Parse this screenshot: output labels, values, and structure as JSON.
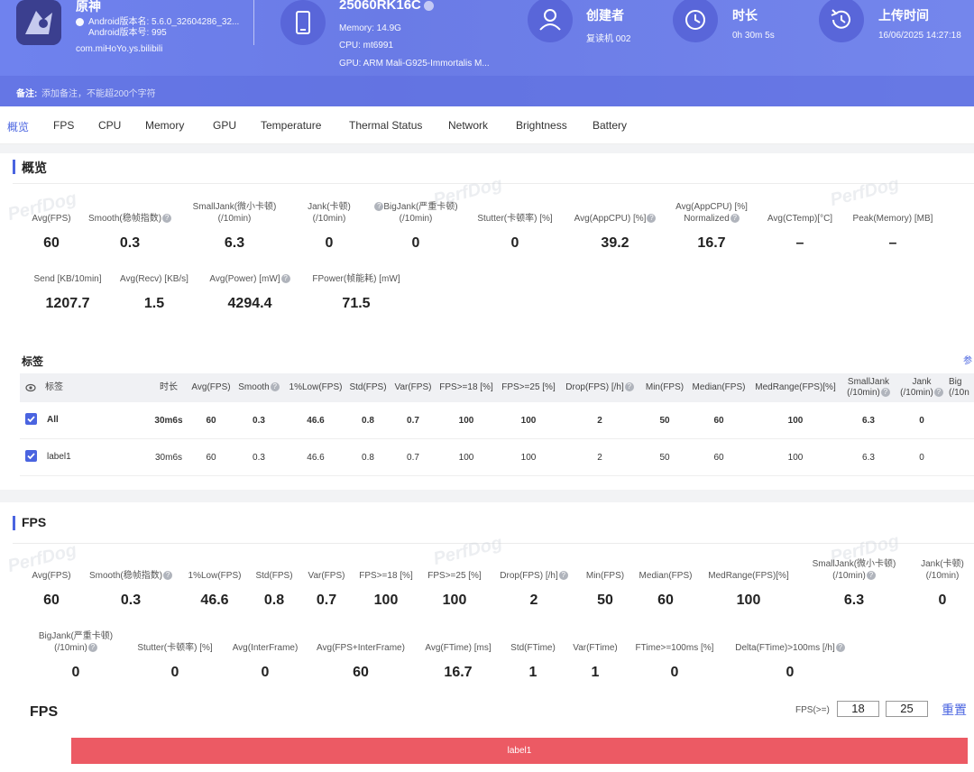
{
  "app": {
    "name": "原神",
    "version_line": "Android版本名: 5.6.0_32604286_32...",
    "version_code": "Android版本号: 995",
    "package": "com.miHoYo.ys.bilibili"
  },
  "device": {
    "name": "25060RK16C",
    "memory": "Memory: 14.9G",
    "cpu": "CPU: mt6991",
    "gpu": "GPU: ARM Mali-G925-Immortalis M..."
  },
  "meta": {
    "creator_label": "创建者",
    "creator_value": "复读机 002",
    "duration_label": "时长",
    "duration_value": "0h 30m 5s",
    "upload_label": "上传时间",
    "upload_value": "16/06/2025 14:27:18"
  },
  "note": {
    "label": "备注:",
    "placeholder": "添加备注，不能超200个字符"
  },
  "tabs": [
    "概览",
    "FPS",
    "CPU",
    "Memory",
    "GPU",
    "Temperature",
    "Thermal Status",
    "Network",
    "Brightness",
    "Battery"
  ],
  "watermark": "PerfDog",
  "overview": {
    "title": "概览",
    "row1": [
      {
        "label": "Avg(FPS)",
        "value": "60"
      },
      {
        "label": "Smooth(稳帧指数)",
        "value": "0.3"
      },
      {
        "label": "SmallJank(微小卡顿)",
        "label2": "(/10min)",
        "value": "6.3"
      },
      {
        "label": "Jank(卡顿)",
        "label2": "(/10min)",
        "value": "0"
      },
      {
        "label": "BigJank(严重卡顿)",
        "label2": "(/10min)",
        "value": "0"
      },
      {
        "label": "Stutter(卡顿率) [%]",
        "value": "0"
      },
      {
        "label": "Avg(AppCPU) [%]",
        "value": "39.2"
      },
      {
        "label": "Avg(AppCPU) [%]",
        "label2": "Normalized",
        "value": "16.7"
      },
      {
        "label": "Avg(CTemp)[°C]",
        "value": "–"
      },
      {
        "label": "Peak(Memory) [MB]",
        "value": "–"
      }
    ],
    "row2": [
      {
        "label": "Send [KB/10min]",
        "value": "1207.7"
      },
      {
        "label": "Avg(Recv) [KB/s]",
        "value": "1.5"
      },
      {
        "label": "Avg(Power) [mW]",
        "value": "4294.4"
      },
      {
        "label": "FPower(帧能耗) [mW]",
        "value": "71.5"
      }
    ]
  },
  "labels_table": {
    "title": "标签",
    "link": "参",
    "headers": [
      "标签",
      "时长",
      "Avg(FPS)",
      "Smooth",
      "1%Low(FPS)",
      "Std(FPS)",
      "Var(FPS)",
      "FPS>=18 [%]",
      "FPS>=25 [%]",
      "Drop(FPS) [/h]",
      "Min(FPS)",
      "Median(FPS)",
      "MedRange(FPS)[%]",
      "SmallJank",
      "Jank",
      "Big"
    ],
    "headers2": {
      "smalljank": "(/10min)",
      "jank": "(/10min)",
      "big": "(/10n"
    },
    "rows": [
      {
        "name": "All",
        "cells": [
          "30m6s",
          "60",
          "0.3",
          "46.6",
          "0.8",
          "0.7",
          "100",
          "100",
          "2",
          "50",
          "60",
          "100",
          "6.3",
          "0"
        ]
      },
      {
        "name": "label1",
        "cells": [
          "30m6s",
          "60",
          "0.3",
          "46.6",
          "0.8",
          "0.7",
          "100",
          "100",
          "2",
          "50",
          "60",
          "100",
          "6.3",
          "0"
        ]
      }
    ]
  },
  "fps": {
    "title": "FPS",
    "row1": [
      {
        "label": "Avg(FPS)",
        "value": "60"
      },
      {
        "label": "Smooth(稳帧指数)",
        "value": "0.3"
      },
      {
        "label": "1%Low(FPS)",
        "value": "46.6"
      },
      {
        "label": "Std(FPS)",
        "value": "0.8"
      },
      {
        "label": "Var(FPS)",
        "value": "0.7"
      },
      {
        "label": "FPS>=18 [%]",
        "value": "100"
      },
      {
        "label": "FPS>=25 [%]",
        "value": "100"
      },
      {
        "label": "Drop(FPS) [/h]",
        "value": "2"
      },
      {
        "label": "Min(FPS)",
        "value": "50"
      },
      {
        "label": "Median(FPS)",
        "value": "60"
      },
      {
        "label": "MedRange(FPS)[%]",
        "value": "100"
      },
      {
        "label": "SmallJank(微小卡顿)",
        "label2": "(/10min)",
        "value": "6.3"
      },
      {
        "label": "Jank(卡顿)",
        "label2": "(/10min)",
        "value": "0"
      }
    ],
    "row2": [
      {
        "label": "BigJank(严重卡顿)",
        "label2": "(/10min)",
        "value": "0"
      },
      {
        "label": "Stutter(卡顿率) [%]",
        "value": "0"
      },
      {
        "label": "Avg(InterFrame)",
        "value": "0"
      },
      {
        "label": "Avg(FPS+InterFrame)",
        "value": "60"
      },
      {
        "label": "Avg(FTime) [ms]",
        "value": "16.7"
      },
      {
        "label": "Std(FTime)",
        "value": "1"
      },
      {
        "label": "Var(FTime)",
        "value": "1"
      },
      {
        "label": "FTime>=100ms [%]",
        "value": "0"
      },
      {
        "label": "Delta(FTime)>100ms [/h]",
        "value": "0"
      }
    ],
    "chart_title": "FPS",
    "threshold_label": "FPS(>=)",
    "threshold_1": "18",
    "threshold_2": "25",
    "reset_label": "重置",
    "label_bar": "label1"
  },
  "colors": {
    "accent": "#4a64e0",
    "header": "#6f82ee",
    "label_bar": "#ec5a64"
  }
}
